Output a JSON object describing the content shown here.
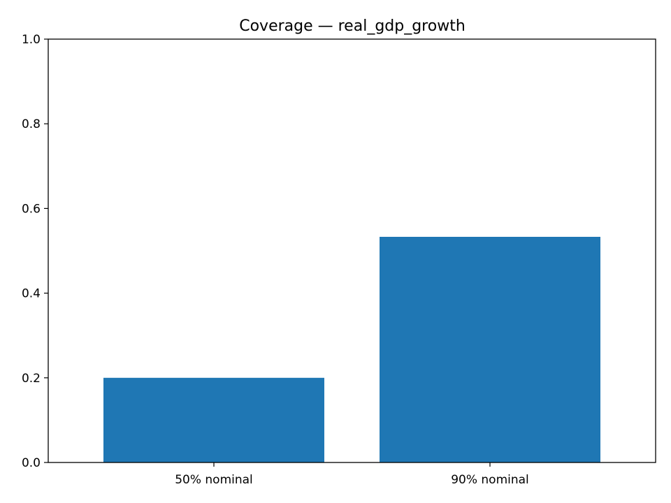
{
  "chart_data": {
    "type": "bar",
    "title": "Coverage — real_gdp_growth",
    "xlabel": "",
    "ylabel": "",
    "categories": [
      "50% nominal",
      "90% nominal"
    ],
    "values": [
      0.2,
      0.533
    ],
    "ylim": [
      0,
      1.0
    ],
    "yticks": [
      "0.0",
      "0.2",
      "0.4",
      "0.6",
      "0.8",
      "1.0"
    ],
    "grid": false,
    "legend": "none",
    "bar_color": "#1f77b4"
  }
}
